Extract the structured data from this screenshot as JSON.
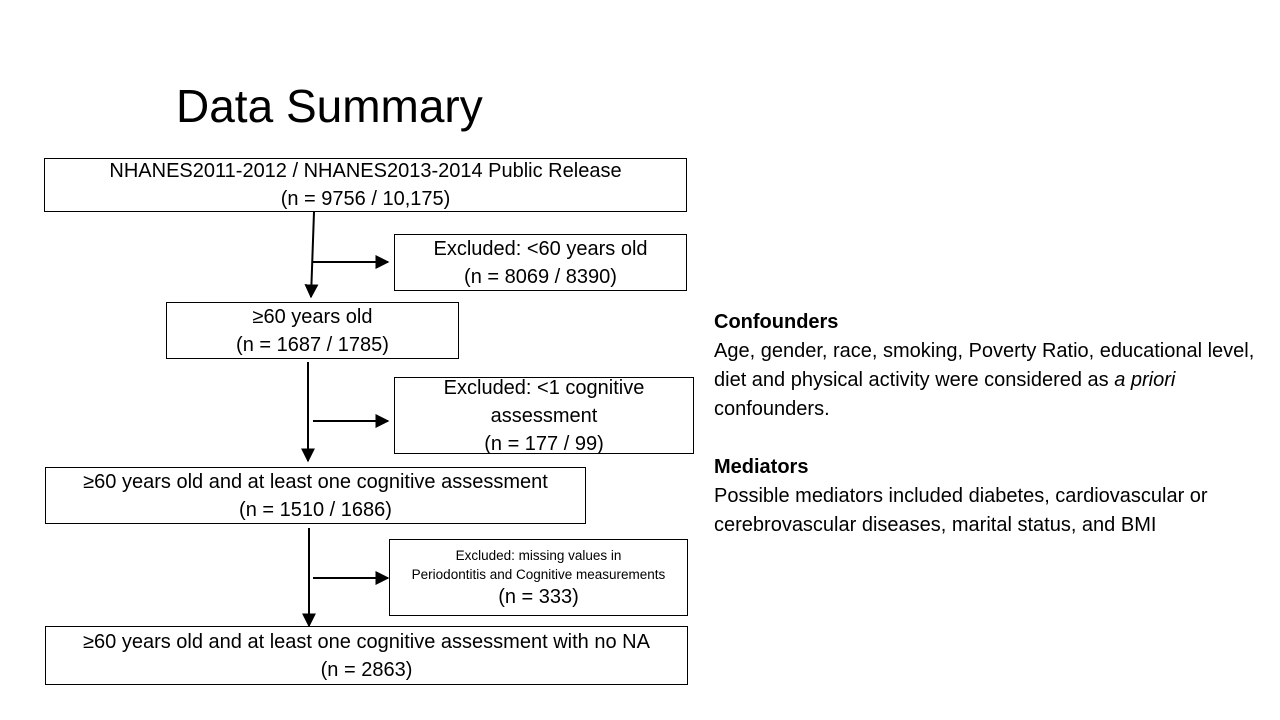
{
  "title": "Data Summary",
  "flowchart": {
    "box1": {
      "line1": "NHANES2011-2012 / NHANES2013-2014 Public Release",
      "line2": "(n = 9756 / 10,175)"
    },
    "excl1": {
      "line1": "Excluded: <60 years old",
      "line2": "(n = 8069 / 8390)"
    },
    "box2": {
      "line1": "≥60 years old",
      "line2": "(n = 1687 / 1785)"
    },
    "excl2": {
      "line1": "Excluded: <1 cognitive",
      "line2": "assessment",
      "line3": "(n = 177 / 99)"
    },
    "box3": {
      "line1": "≥60 years old and at least one cognitive assessment",
      "line2": "(n = 1510 / 1686)"
    },
    "excl3": {
      "line1": "Excluded: missing values in",
      "line2": "Periodontitis and Cognitive measurements",
      "line3": "(n = 333)"
    },
    "box4": {
      "line1": "≥60 years old and at least one cognitive assessment with no NA",
      "line2": "(n = 2863)"
    }
  },
  "confounders": {
    "heading": "Confounders",
    "text_before": "Age, gender, race, smoking, Poverty Ratio, educational level, diet and physical activity were considered as ",
    "text_italic": "a priori",
    "text_after": " confounders."
  },
  "mediators": {
    "heading": "Mediators",
    "text": "Possible mediators included diabetes, cardiovascular or cerebrovascular diseases, marital status, and BMI"
  }
}
